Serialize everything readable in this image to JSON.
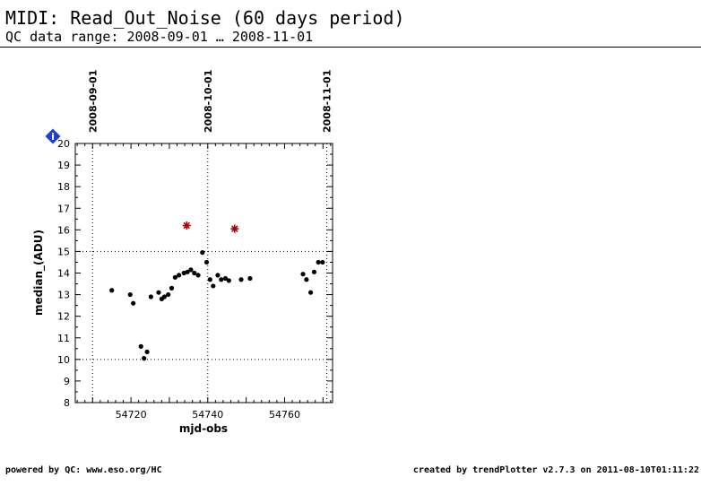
{
  "header": {
    "title": "MIDI: Read_Out_Noise (60 days period)",
    "subtitle": "QC data range: 2008-09-01 … 2008-11-01"
  },
  "footer": {
    "left": "powered by QC: www.eso.org/HC",
    "right": "created by trendPlotter v2.7.3 on 2011-08-10T01:11:22"
  },
  "info_badge": {
    "icon": "info-diamond-icon",
    "label": "i",
    "color": "#1f3fd0"
  },
  "chart_data": {
    "type": "scatter",
    "xlabel": "mjd-obs",
    "ylabel": "median_(ADU)",
    "xlim": [
      54705.5,
      54772.5
    ],
    "ylim": [
      8,
      20
    ],
    "x_ticks": [
      54720,
      54740,
      54760
    ],
    "y_ticks": [
      8,
      9,
      10,
      11,
      12,
      13,
      14,
      15,
      16,
      17,
      18,
      19,
      20
    ],
    "reference_lines_y": [
      10,
      15
    ],
    "date_markers": [
      {
        "x": 54710,
        "label": "2008-09-01"
      },
      {
        "x": 54740,
        "label": "2008-10-01"
      },
      {
        "x": 54771,
        "label": "2008-11-01"
      }
    ],
    "series": [
      {
        "marker": "dot",
        "color": "#000000",
        "points": [
          [
            54715.0,
            13.2
          ],
          [
            54719.8,
            13.0
          ],
          [
            54720.6,
            12.6
          ],
          [
            54722.6,
            10.6
          ],
          [
            54723.4,
            10.05
          ],
          [
            54724.2,
            10.35
          ],
          [
            54725.2,
            12.9
          ],
          [
            54727.2,
            13.1
          ],
          [
            54728.0,
            12.8
          ],
          [
            54728.7,
            12.9
          ],
          [
            54729.7,
            13.0
          ],
          [
            54730.6,
            13.3
          ],
          [
            54731.5,
            13.8
          ],
          [
            54732.5,
            13.9
          ],
          [
            54733.8,
            14.0
          ],
          [
            54734.7,
            14.05
          ],
          [
            54735.6,
            14.15
          ],
          [
            54736.5,
            14.0
          ],
          [
            54737.5,
            13.9
          ],
          [
            54738.6,
            14.95
          ],
          [
            54739.7,
            14.5
          ],
          [
            54740.6,
            13.7
          ],
          [
            54741.4,
            13.4
          ],
          [
            54742.6,
            13.9
          ],
          [
            54743.5,
            13.7
          ],
          [
            54744.6,
            13.75
          ],
          [
            54745.5,
            13.65
          ],
          [
            54748.7,
            13.7
          ],
          [
            54751.0,
            13.75
          ],
          [
            54764.8,
            13.95
          ],
          [
            54765.7,
            13.7
          ],
          [
            54766.8,
            13.1
          ],
          [
            54767.7,
            14.05
          ],
          [
            54768.8,
            14.5
          ],
          [
            54769.9,
            14.5
          ]
        ]
      },
      {
        "marker": "star",
        "color": "#b00000",
        "points": [
          [
            54734.5,
            16.2
          ],
          [
            54747.0,
            16.05
          ]
        ]
      }
    ]
  }
}
